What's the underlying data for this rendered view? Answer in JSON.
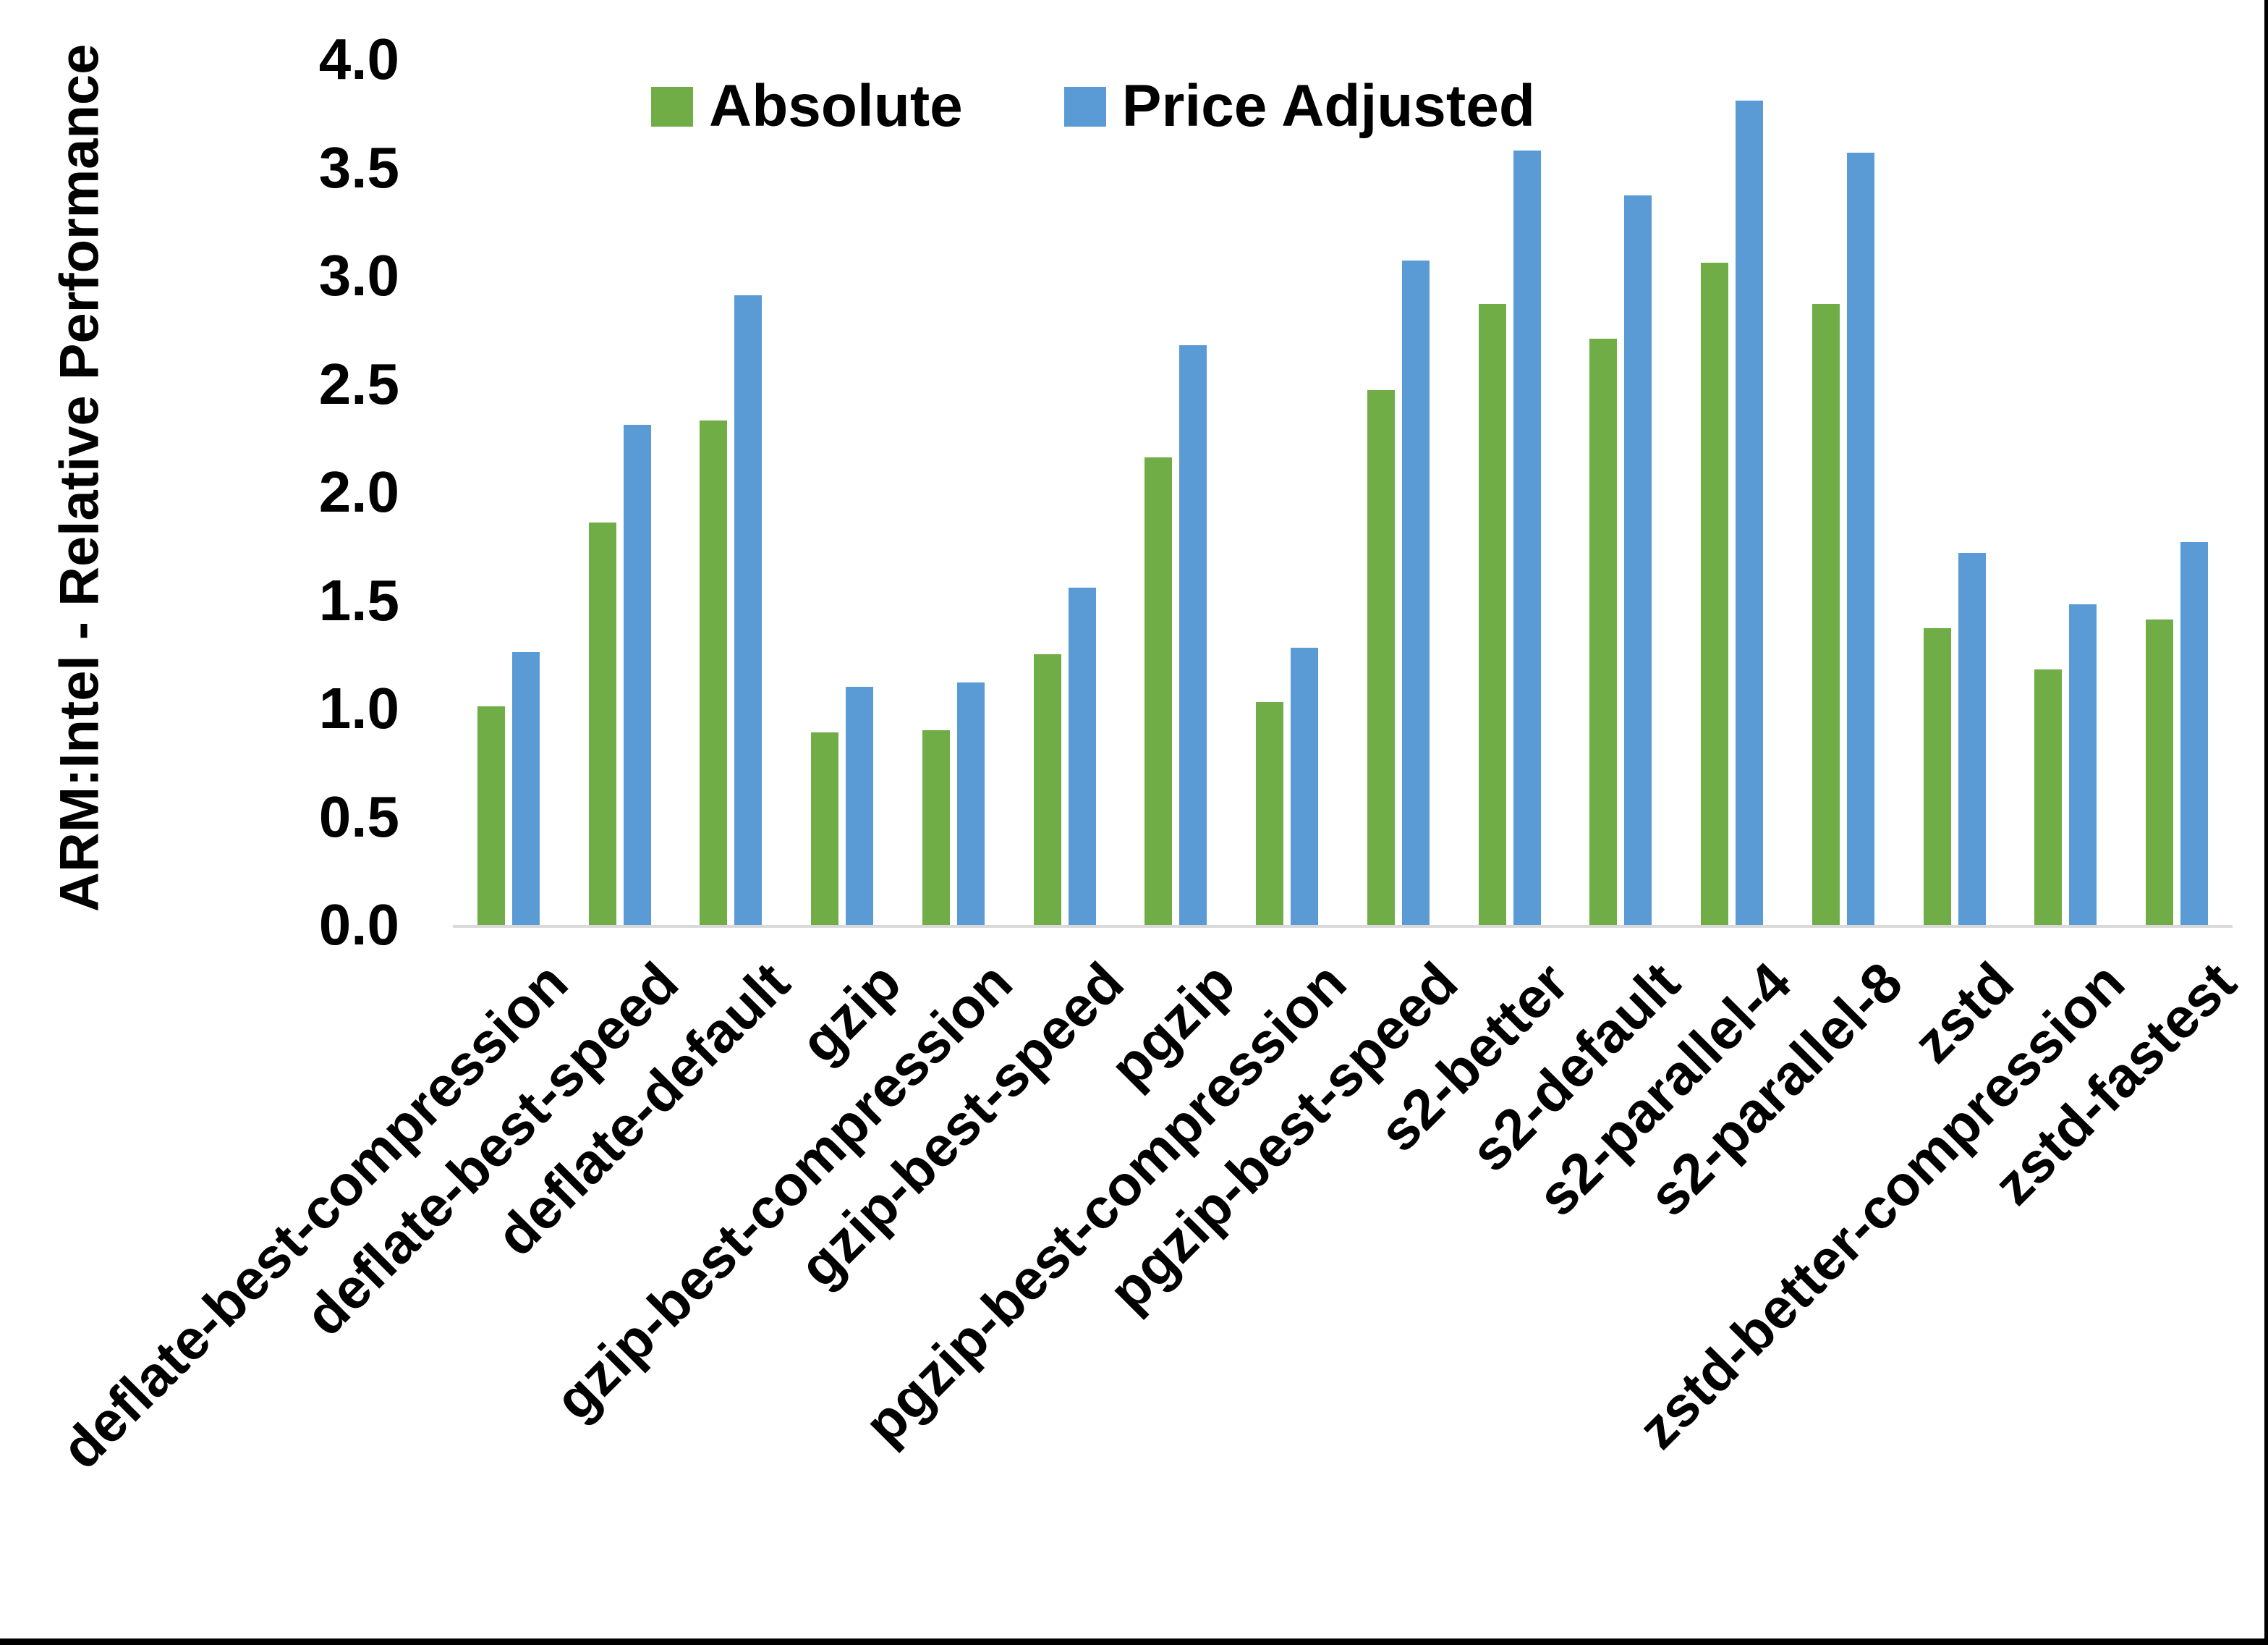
{
  "y_axis": {
    "title": "ARM:Intel - Relative Performance",
    "ticks": [
      "4.0",
      "3.5",
      "3.0",
      "2.5",
      "2.0",
      "1.5",
      "1.0",
      "0.5",
      "0.0"
    ]
  },
  "legend": {
    "entries": [
      {
        "label": "Absolute",
        "color": "#70AD47"
      },
      {
        "label": "Price Adjusted",
        "color": "#5B9BD5"
      }
    ],
    "position": "top"
  },
  "colors": {
    "absolute_green": "#70AD47",
    "price_adjusted_blue": "#5B9BD5",
    "axis_line_gray": "#D9D9D9",
    "frame_black": "#000000"
  },
  "chart_data": {
    "type": "bar",
    "title": "",
    "xlabel": "",
    "ylabel": "ARM:Intel - Relative Performance",
    "ylim": [
      0,
      4
    ],
    "ytick_step": 0.5,
    "grid": false,
    "legend_position": "top",
    "categories": [
      "deflate-best-compression",
      "deflate-best-speed",
      "deflate-default",
      "gzip",
      "gzip-best-compression",
      "gzip-best-speed",
      "pgzip",
      "pgzip-best-compression",
      "pgzip-best-speed",
      "s2-better",
      "s2-default",
      "s2-parallel-4",
      "s2-parallel-8",
      "zstd",
      "zstd-better-compression",
      "zstd-fastest"
    ],
    "series": [
      {
        "name": "Absolute",
        "color": "#70AD47",
        "values": [
          1.01,
          1.86,
          2.33,
          0.89,
          0.9,
          1.25,
          2.16,
          1.03,
          2.47,
          2.87,
          2.71,
          3.06,
          2.87,
          1.37,
          1.18,
          1.41
        ]
      },
      {
        "name": "Price Adjusted",
        "color": "#5B9BD5",
        "values": [
          1.26,
          2.31,
          2.91,
          1.1,
          1.12,
          1.56,
          2.68,
          1.28,
          3.07,
          3.58,
          3.37,
          3.81,
          3.57,
          1.72,
          1.48,
          1.77
        ]
      }
    ]
  }
}
